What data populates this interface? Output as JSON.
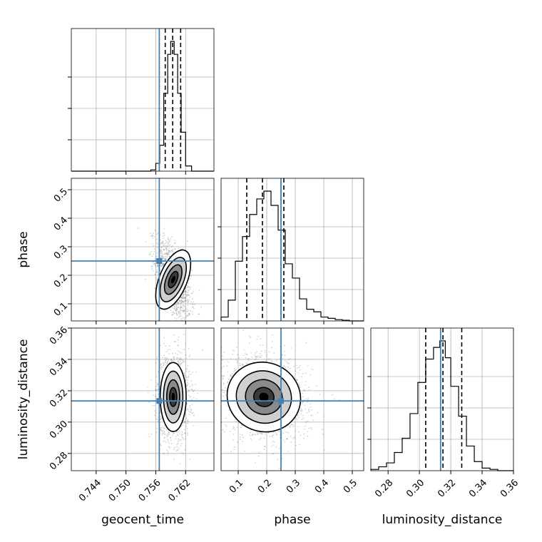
{
  "chart_data": {
    "type": "corner",
    "parameters": [
      "geocent_time",
      "phase",
      "luminosity_distance"
    ],
    "axis_labels": {
      "x": [
        "geocent_time",
        "phase",
        "luminosity_distance"
      ],
      "y": [
        "",
        "phase",
        "luminosity_distance"
      ]
    },
    "ranges": {
      "geocent_time": [
        0.739,
        0.7677
      ],
      "phase": [
        0.04,
        0.54
      ],
      "luminosity_distance": [
        0.269,
        0.36
      ]
    },
    "ticks": {
      "geocent_time": [
        0.744,
        0.75,
        0.756,
        0.762
      ],
      "phase": [
        0.1,
        0.2,
        0.3,
        0.4,
        0.5
      ],
      "luminosity_distance": [
        0.28,
        0.3,
        0.32,
        0.34,
        0.36
      ]
    },
    "tick_labels": {
      "geocent_time": [
        "0.744",
        "0.750",
        "0.756",
        "0.762"
      ],
      "phase": [
        "0.1",
        "0.2",
        "0.3",
        "0.4",
        "0.5"
      ],
      "luminosity_distance": [
        "0.28",
        "0.30",
        "0.32",
        "0.34",
        "0.36"
      ]
    },
    "truths": {
      "geocent_time": 0.7567,
      "phase": 0.25,
      "luminosity_distance": 0.3135
    },
    "quantiles": {
      "geocent_time": [
        0.7579,
        0.7594,
        0.761
      ],
      "phase": [
        0.13,
        0.185,
        0.26
      ],
      "luminosity_distance": [
        0.304,
        0.315,
        0.327
      ]
    },
    "histograms": {
      "geocent_time": {
        "edges": [
          0.739,
          0.755,
          0.756,
          0.7568,
          0.7576,
          0.7584,
          0.759,
          0.7597,
          0.7604,
          0.7611,
          0.762,
          0.7632,
          0.7677
        ],
        "counts": [
          0,
          0.01,
          0.06,
          0.2,
          0.6,
          0.9,
          1.0,
          0.9,
          0.6,
          0.3,
          0.04,
          0
        ]
      },
      "phase": {
        "edges": [
          0.04,
          0.065,
          0.09,
          0.115,
          0.14,
          0.165,
          0.19,
          0.215,
          0.24,
          0.265,
          0.29,
          0.315,
          0.34,
          0.365,
          0.39,
          0.415,
          0.44,
          0.465,
          0.49,
          0.515,
          0.54
        ],
        "counts": [
          0.03,
          0.16,
          0.46,
          0.65,
          0.82,
          0.94,
          1.0,
          0.89,
          0.7,
          0.44,
          0.33,
          0.17,
          0.09,
          0.07,
          0.03,
          0.02,
          0.01,
          0.005,
          0,
          0
        ]
      },
      "luminosity_distance": {
        "edges": [
          0.269,
          0.274,
          0.279,
          0.284,
          0.289,
          0.294,
          0.299,
          0.304,
          0.309,
          0.313,
          0.3165,
          0.32,
          0.325,
          0.33,
          0.335,
          0.34,
          0.345,
          0.35,
          0.36
        ],
        "counts": [
          0.01,
          0.03,
          0.06,
          0.14,
          0.25,
          0.44,
          0.68,
          0.86,
          0.95,
          1.0,
          0.87,
          0.65,
          0.42,
          0.19,
          0.07,
          0.02,
          0.01,
          0
        ]
      }
    },
    "scatter_centers": {
      "phase_vs_geocent_time": {
        "x": 0.7595,
        "y": 0.185,
        "sx": 0.0014,
        "sy": 0.055
      },
      "luminosity_distance_vs_geocent_time": {
        "x": 0.7595,
        "y": 0.316,
        "sx": 0.0013,
        "sy": 0.011
      },
      "luminosity_distance_vs_phase": {
        "x": 0.19,
        "y": 0.316,
        "sx": 0.065,
        "sy": 0.011
      }
    },
    "grid": true,
    "legend": "none",
    "colors": {
      "truth": "#4682b4",
      "hist": "#000000",
      "quantile": "#000000",
      "points": "#808080"
    }
  }
}
